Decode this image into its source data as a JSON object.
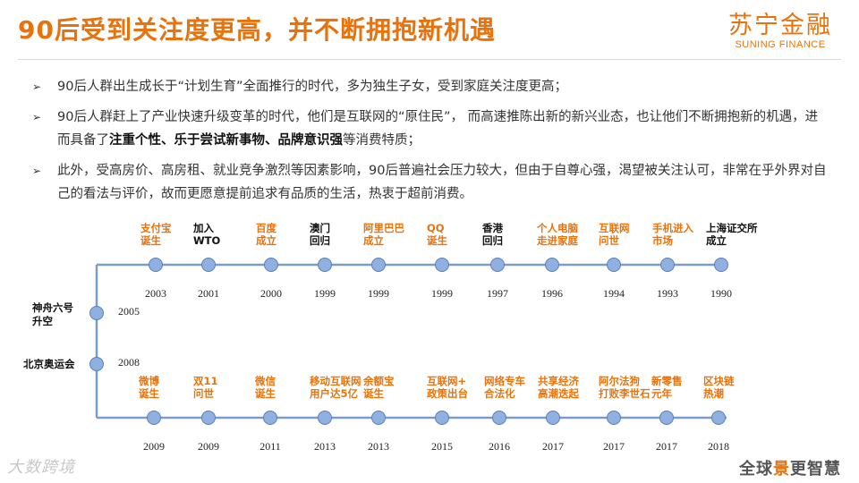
{
  "title": "90后受到关注度更高，并不断拥抱新机遇",
  "logo": {
    "cn": "苏宁金融",
    "en": "SUNING FINANCE"
  },
  "bullets": [
    {
      "parts": [
        {
          "t": "90后人群出生成长于“计划生育”全面推行的时代，多为独生子女，受到家庭关注度更高；",
          "b": false
        }
      ]
    },
    {
      "parts": [
        {
          "t": "90后人群赶上了产业快速升级变革的时代，他们是互联网的“原住民”， 而高速推陈出新的新兴业态，也让他们不断拥抱新的机遇，进而具备了",
          "b": false
        },
        {
          "t": "注重个性、乐于尝试新事物、品牌意识强",
          "b": true
        },
        {
          "t": "等消费特质；",
          "b": false
        }
      ]
    },
    {
      "parts": [
        {
          "t": "此外，受高房价、高房租、就业竞争激烈等因素影响，90后普遍社会压力较大，但由于自尊心强，渴望被关注认可，非常在乎外界对自己的看法与评价，故而更愿意提前追求有品质的生活，热衷于超前消费。",
          "b": false
        }
      ]
    }
  ],
  "timeline": {
    "top_row": [
      {
        "lines": [
          "支付宝",
          "诞生"
        ],
        "year": "2003",
        "color": "#e8730c"
      },
      {
        "lines": [
          "加入",
          "WTO"
        ],
        "year": "2001",
        "color": "#111111"
      },
      {
        "lines": [
          "百度",
          "成立"
        ],
        "year": "2000",
        "color": "#e8730c"
      },
      {
        "lines": [
          "澳门",
          "回归"
        ],
        "year": "1999",
        "color": "#111111"
      },
      {
        "lines": [
          "阿里巴巴",
          "成立"
        ],
        "year": "1999",
        "color": "#e8730c"
      },
      {
        "lines": [
          "QQ",
          "诞生"
        ],
        "year": "1999",
        "color": "#e8730c"
      },
      {
        "lines": [
          "香港",
          "回归"
        ],
        "year": "1997",
        "color": "#111111"
      },
      {
        "lines": [
          "个人电脑",
          "走进家庭"
        ],
        "year": "1996",
        "color": "#e8730c"
      },
      {
        "lines": [
          "互联网",
          "问世"
        ],
        "year": "1994",
        "color": "#e8730c"
      },
      {
        "lines": [
          "手机进入",
          "市场"
        ],
        "year": "1993",
        "color": "#e8730c"
      },
      {
        "lines": [
          "上海证交所",
          "成立"
        ],
        "year": "1990",
        "color": "#111111"
      }
    ],
    "side": [
      {
        "lines": [
          "神舟六号",
          "升空"
        ],
        "year": "2005"
      },
      {
        "lines": [
          "北京奥运会"
        ],
        "year": "2008"
      }
    ],
    "bottom_row": [
      {
        "lines": [
          "微博",
          "诞生"
        ],
        "year": "2009",
        "color": "#e8730c"
      },
      {
        "lines": [
          "双11",
          "问世"
        ],
        "year": "2009",
        "color": "#e8730c"
      },
      {
        "lines": [
          "微信",
          "诞生"
        ],
        "year": "2011",
        "color": "#e8730c"
      },
      {
        "lines": [
          "移动互联网",
          "用户达5亿"
        ],
        "year": "2013",
        "color": "#e8730c"
      },
      {
        "lines": [
          "余额宝",
          "诞生"
        ],
        "year": "2013",
        "color": "#e8730c"
      },
      {
        "lines": [
          "互联网+",
          "政策出台"
        ],
        "year": "2015",
        "color": "#e8730c"
      },
      {
        "lines": [
          "网络专车",
          "合法化"
        ],
        "year": "2016",
        "color": "#e8730c"
      },
      {
        "lines": [
          "共享经济",
          "高潮迭起"
        ],
        "year": "2017",
        "color": "#e8730c"
      },
      {
        "lines": [
          "阿尔法狗",
          "打败李世石"
        ],
        "year": "2017",
        "color": "#e8730c"
      },
      {
        "lines": [
          "新零售",
          "元年"
        ],
        "year": "2017",
        "color": "#e8730c"
      },
      {
        "lines": [
          "区块链",
          "热潮"
        ],
        "year": "2018",
        "color": "#e8730c"
      }
    ],
    "colors": {
      "line": "#7a9cc6",
      "dot": "#8fb0e0",
      "dot_stroke": "#5b7fb8"
    }
  },
  "watermark_left": "大数跨境",
  "watermark_right": {
    "a": "全球",
    "b": "景",
    "c": "更智慧"
  }
}
